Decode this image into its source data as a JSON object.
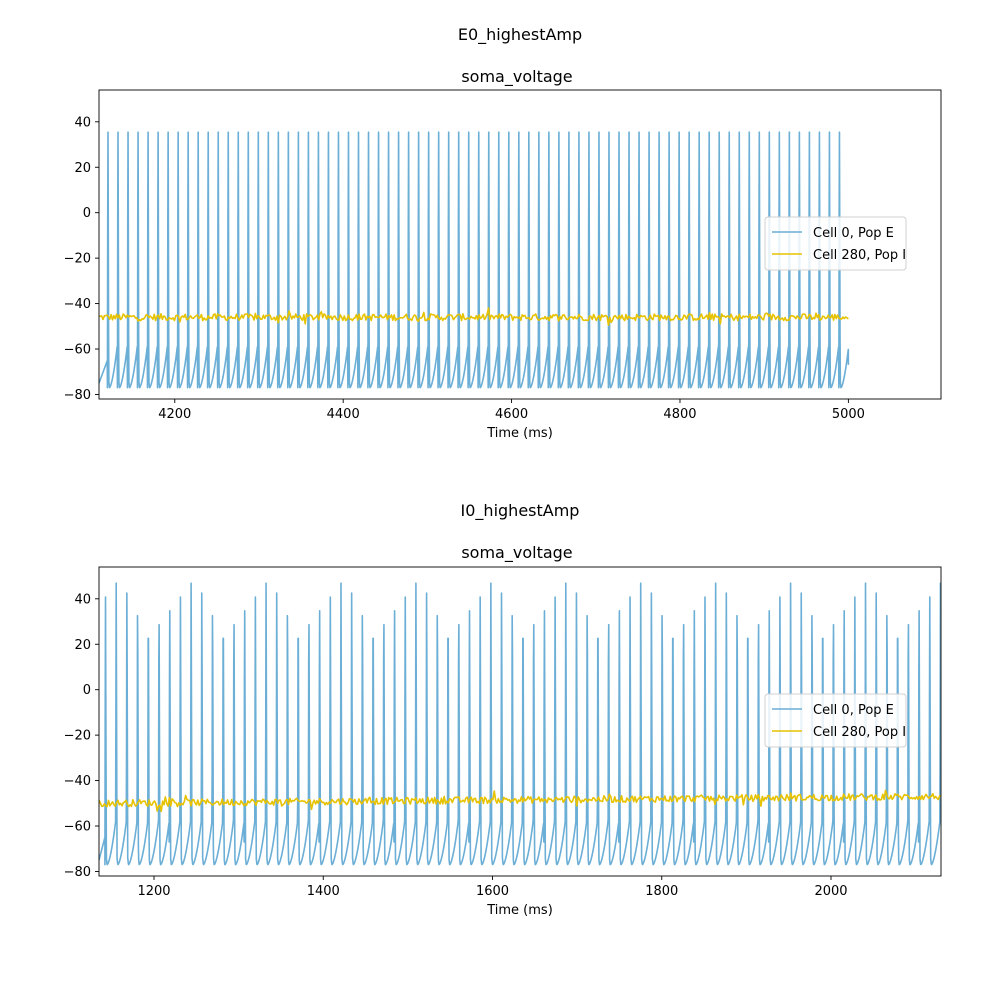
{
  "panels": [
    {
      "suptitle": "E0_highestAmp",
      "title": "soma_voltage",
      "xlabel": "Time (ms)"
    },
    {
      "suptitle": "I0_highestAmp",
      "title": "soma_voltage",
      "xlabel": "Time (ms)"
    }
  ],
  "colors": {
    "cell0": "#6baed6",
    "cell280": "#e6c200"
  },
  "chart_data": [
    {
      "type": "line",
      "title": "soma_voltage",
      "suptitle": "E0_highestAmp",
      "xlabel": "Time (ms)",
      "ylabel": "",
      "xlim": [
        4110,
        5110
      ],
      "ylim": [
        -82,
        54
      ],
      "xticks": [
        4200,
        4400,
        4600,
        4800,
        5000
      ],
      "yticks": [
        -80,
        -60,
        -40,
        -20,
        0,
        20,
        40
      ],
      "legend": "center-right",
      "series": [
        {
          "name": "Cell 0, Pop E",
          "type": "spikes",
          "t_start": 4110,
          "t_end": 5000,
          "first_spike": 4120,
          "period": 11.9,
          "peak": 49,
          "trough": -77,
          "end_value": -67
        },
        {
          "name": "Cell 280, Pop I",
          "type": "noisy",
          "t_start": 4110,
          "t_end": 5000,
          "mean": -46,
          "mean_end": -46,
          "noise": 1.5
        }
      ]
    },
    {
      "type": "line",
      "title": "soma_voltage",
      "suptitle": "I0_highestAmp",
      "xlabel": "Time (ms)",
      "ylabel": "",
      "xlim": [
        1135,
        2130
      ],
      "ylim": [
        -82,
        54
      ],
      "xticks": [
        1200,
        1400,
        1600,
        1800,
        2000
      ],
      "yticks": [
        -80,
        -60,
        -40,
        -20,
        0,
        20,
        40
      ],
      "legend": "center-right",
      "series": [
        {
          "name": "Cell 0, Pop E",
          "type": "spikes",
          "t_start": 1135,
          "t_end": 2130,
          "first_spike": 1142,
          "period": 12.65,
          "peak": 49,
          "trough": -77,
          "end_value": -57
        },
        {
          "name": "Cell 280, Pop I",
          "type": "noisy",
          "t_start": 1135,
          "t_end": 2130,
          "mean": -50,
          "mean_end": -47,
          "noise": 1.5
        }
      ]
    }
  ]
}
